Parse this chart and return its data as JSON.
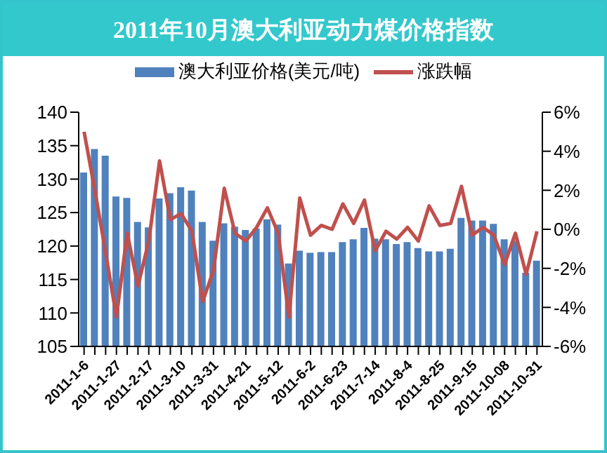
{
  "chart_data": {
    "type": "bar",
    "title": "2011年10月澳大利亚动力煤价格指数",
    "categories": [
      "2011-1-6",
      null,
      null,
      "2011-1-27",
      null,
      null,
      "2011-2-17",
      null,
      null,
      "2011-3-10",
      null,
      null,
      "2011-3-31",
      null,
      null,
      "2011-4-21",
      null,
      null,
      "2011-5-12",
      null,
      null,
      "2011-6-2",
      null,
      null,
      "2011-6-23",
      null,
      null,
      "2011-7-14",
      null,
      null,
      "2011-8-4",
      null,
      null,
      "2011-8-25",
      null,
      null,
      "2011-9-15",
      null,
      null,
      "2011-10-08",
      null,
      null,
      "2011-10-31"
    ],
    "series": [
      {
        "name": "澳大利亚价格(美元/吨)",
        "color": "#4f81bd",
        "values": [
          131.0,
          134.5,
          133.5,
          127.4,
          127.2,
          123.6,
          122.8,
          127.1,
          127.9,
          128.8,
          128.3,
          123.6,
          120.8,
          123.4,
          122.9,
          122.4,
          122.6,
          124.0,
          123.2,
          117.4,
          119.3,
          119.0,
          119.1,
          119.1,
          120.6,
          121.0,
          122.7,
          121.1,
          121.0,
          120.3,
          120.6,
          119.7,
          119.2,
          119.2,
          119.6,
          124.2,
          123.8,
          123.8,
          123.3,
          121.0,
          120.8,
          116.0,
          117.8
        ]
      },
      {
        "name": "涨跌幅",
        "type": "line",
        "axis": "y2",
        "color": "#c0504d",
        "values": [
          5.0,
          2.0,
          -1.2,
          -4.5,
          -0.2,
          -2.9,
          -0.6,
          3.5,
          0.5,
          0.8,
          -0.1,
          -3.7,
          -2.1,
          2.1,
          -0.2,
          -0.6,
          0.1,
          1.1,
          -0.2,
          -4.5,
          1.6,
          -0.3,
          0.2,
          0.0,
          1.3,
          0.3,
          1.5,
          -1.1,
          -0.1,
          -0.5,
          0.1,
          -0.6,
          1.2,
          0.2,
          0.3,
          2.2,
          -0.3,
          0.1,
          -0.3,
          -1.8,
          -0.2,
          -2.3,
          -0.1
        ]
      }
    ],
    "ylim": [
      105,
      140
    ],
    "yticks": [
      105,
      110,
      115,
      120,
      125,
      130,
      135,
      140
    ],
    "y2lim": [
      -6,
      6
    ],
    "y2ticks": [
      {
        "value": -6,
        "label": "-6%"
      },
      {
        "value": -4,
        "label": "-4%"
      },
      {
        "value": -2,
        "label": "-2%"
      },
      {
        "value": 0,
        "label": "0%"
      },
      {
        "value": 2,
        "label": "2%"
      },
      {
        "value": 4,
        "label": "4%"
      },
      {
        "value": 6,
        "label": "6%"
      }
    ],
    "grid": false,
    "legend": "top",
    "marker": "none",
    "line_style": "solid"
  }
}
